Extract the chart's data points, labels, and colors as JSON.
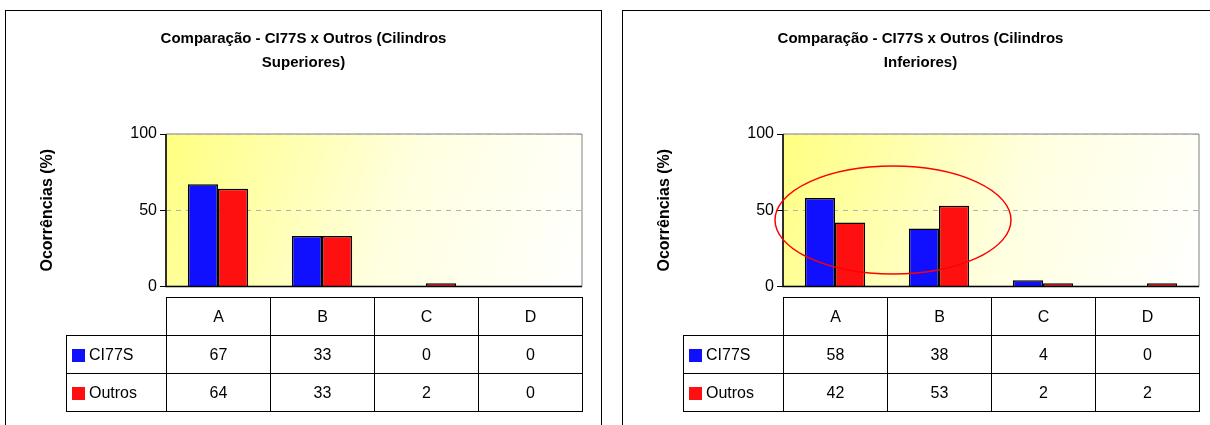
{
  "chart_data": [
    {
      "type": "bar",
      "title": "Comparação - CI77S x Outros (Cilindros Superiores)",
      "ylabel": "Ocorrências (%)",
      "categories": [
        "A",
        "B",
        "C",
        "D"
      ],
      "series": [
        {
          "name": "CI77S",
          "color": "#1010ff",
          "values": [
            67,
            33,
            0,
            0
          ]
        },
        {
          "name": "Outros",
          "color": "#ff1010",
          "values": [
            64,
            33,
            2,
            0
          ]
        }
      ],
      "ylim": [
        0,
        100
      ],
      "yticks": [
        0,
        50,
        100
      ],
      "grid": "y",
      "legend": "bottom",
      "data_labels": true
    },
    {
      "type": "bar",
      "title": "Comparação - CI77S x Outros (Cilindros Inferiores)",
      "ylabel": "Ocorrências (%)",
      "categories": [
        "A",
        "B",
        "C",
        "D"
      ],
      "series": [
        {
          "name": "CI77S",
          "color": "#1010ff",
          "values": [
            58,
            38,
            4,
            0
          ]
        },
        {
          "name": "Outros",
          "color": "#ff1010",
          "values": [
            42,
            53,
            2,
            2
          ]
        }
      ],
      "ylim": [
        0,
        100
      ],
      "yticks": [
        0,
        50,
        100
      ],
      "grid": "y",
      "legend": "bottom",
      "data_labels": true
    }
  ]
}
